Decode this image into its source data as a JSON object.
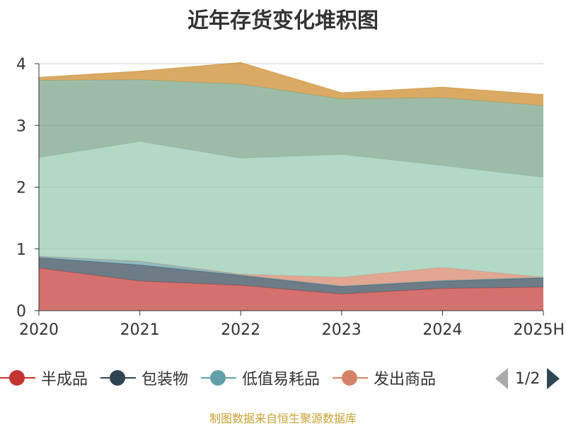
{
  "chart_data": {
    "type": "area",
    "title": "近年存货变化堆积图",
    "categories": [
      "2020",
      "2021",
      "2022",
      "2023",
      "2024",
      "2025H"
    ],
    "ylim": [
      0,
      4
    ],
    "yticks": [
      "0",
      "1",
      "2",
      "3",
      "4"
    ],
    "grid": true,
    "stacked": true,
    "series": [
      {
        "name": "半成品",
        "color": "#c23531",
        "values": [
          0.69,
          0.48,
          0.41,
          0.27,
          0.36,
          0.38
        ]
      },
      {
        "name": "包装物",
        "color": "#2f4554",
        "values": [
          0.17,
          0.26,
          0.16,
          0.12,
          0.12,
          0.15
        ]
      },
      {
        "name": "低值易耗品",
        "color": "#61a0a8",
        "values": [
          0.02,
          0.06,
          0.01,
          0.01,
          0.01,
          0.01
        ]
      },
      {
        "name": "发出商品",
        "color": "#d48265",
        "values": [
          0.0,
          0.0,
          0.01,
          0.14,
          0.21,
          0.0
        ]
      },
      {
        "series_index": 4,
        "color": "#91c7ae",
        "values": [
          1.6,
          1.94,
          1.88,
          1.99,
          1.65,
          1.62
        ]
      },
      {
        "series_index": 5,
        "color": "#749f83",
        "values": [
          1.25,
          1.0,
          1.2,
          0.9,
          1.1,
          1.16
        ]
      },
      {
        "series_index": 6,
        "color": "#ca8622",
        "values": [
          0.05,
          0.14,
          0.35,
          0.1,
          0.17,
          0.18
        ]
      }
    ]
  },
  "legend": {
    "page_text": "1/2"
  },
  "source_note": "制图数据来自恒生聚源数据库"
}
